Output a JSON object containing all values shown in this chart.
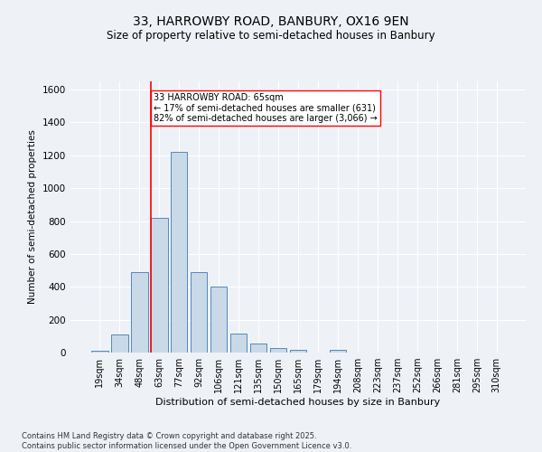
{
  "title1": "33, HARROWBY ROAD, BANBURY, OX16 9EN",
  "title2": "Size of property relative to semi-detached houses in Banbury",
  "xlabel": "Distribution of semi-detached houses by size in Banbury",
  "ylabel": "Number of semi-detached properties",
  "bin_labels": [
    "19sqm",
    "34sqm",
    "48sqm",
    "63sqm",
    "77sqm",
    "92sqm",
    "106sqm",
    "121sqm",
    "135sqm",
    "150sqm",
    "165sqm",
    "179sqm",
    "194sqm",
    "208sqm",
    "223sqm",
    "237sqm",
    "252sqm",
    "266sqm",
    "281sqm",
    "295sqm",
    "310sqm"
  ],
  "bar_values": [
    10,
    110,
    490,
    820,
    1220,
    490,
    400,
    115,
    55,
    25,
    15,
    0,
    15,
    0,
    0,
    0,
    0,
    0,
    0,
    0,
    0
  ],
  "bar_color": "#c9d9e8",
  "bar_edge_color": "#5588bb",
  "vline_bin": 3,
  "vline_color": "red",
  "annotation_title": "33 HARROWBY ROAD: 65sqm",
  "annotation_line1": "← 17% of semi-detached houses are smaller (631)",
  "annotation_line2": "82% of semi-detached houses are larger (3,066) →",
  "annotation_box_color": "white",
  "annotation_box_edge": "red",
  "footer1": "Contains HM Land Registry data © Crown copyright and database right 2025.",
  "footer2": "Contains public sector information licensed under the Open Government Licence v3.0.",
  "ylim": [
    0,
    1650
  ],
  "yticks": [
    0,
    200,
    400,
    600,
    800,
    1000,
    1200,
    1400,
    1600
  ],
  "background_color": "#eef2f7",
  "grid_color": "#ffffff"
}
